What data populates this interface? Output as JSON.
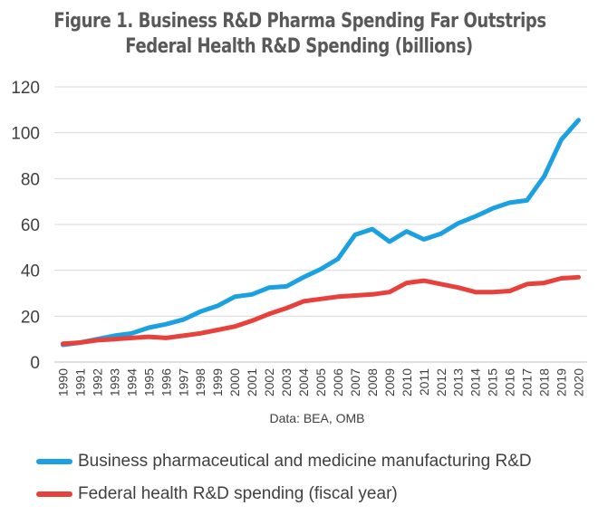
{
  "chart_data": {
    "type": "line",
    "title": [
      "Figure 1. Business R&D Pharma Spending Far Outstrips",
      "Federal Health R&D Spending (billions)"
    ],
    "source_note": "Data: BEA, OMB",
    "x": [
      1990,
      1991,
      1992,
      1993,
      1994,
      1995,
      1996,
      1997,
      1998,
      1999,
      2000,
      2001,
      2002,
      2003,
      2004,
      2005,
      2006,
      2007,
      2008,
      2009,
      2010,
      2011,
      2012,
      2013,
      2014,
      2015,
      2016,
      2017,
      2018,
      2019,
      2020
    ],
    "ylim": [
      0,
      120
    ],
    "yticks": [
      0,
      20,
      40,
      60,
      80,
      100,
      120
    ],
    "grid": true,
    "legend_position": "bottom",
    "series": [
      {
        "name": "Business pharmaceutical and medicine manufacturing R&D",
        "color": "#1ba1e2",
        "values": [
          7.5,
          8.5,
          10,
          11.5,
          12.5,
          15,
          16.5,
          18.5,
          22,
          24.5,
          28.5,
          29.5,
          32.5,
          33,
          37,
          40.5,
          45,
          55.5,
          58,
          52.5,
          57,
          53.5,
          56,
          60.5,
          63.5,
          67,
          69.5,
          70.5,
          81,
          97,
          105.5
        ]
      },
      {
        "name": "Federal health R&D spending (fiscal year)",
        "color": "#e8403a",
        "values": [
          8,
          8.5,
          9.5,
          10,
          10.5,
          11,
          10.5,
          11.5,
          12.5,
          14,
          15.5,
          18,
          21,
          23.5,
          26.5,
          27.5,
          28.5,
          29,
          29.5,
          30.5,
          34.5,
          35.5,
          34,
          32.5,
          30.5,
          30.5,
          31,
          34,
          34.5,
          36.5,
          37
        ]
      }
    ]
  }
}
